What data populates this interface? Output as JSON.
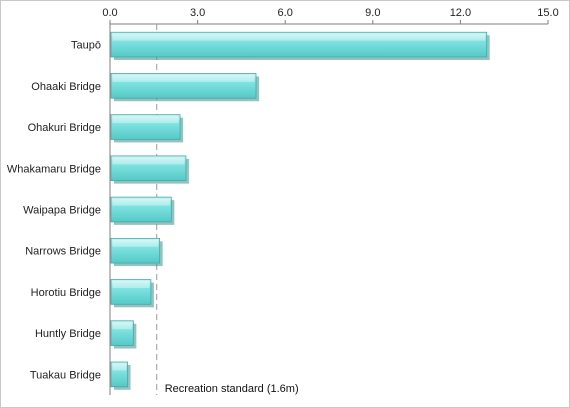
{
  "chart_data": {
    "type": "bar",
    "orientation": "horizontal",
    "categories": [
      "Taupō",
      "Ohaaki Bridge",
      "Ohakuri Bridge",
      "Whakamaru Bridge",
      "Waipapa Bridge",
      "Narrows Bridge",
      "Horotiu Bridge",
      "Huntly Bridge",
      "Tuakau Bridge"
    ],
    "values": [
      12.9,
      5.0,
      2.4,
      2.6,
      2.1,
      1.7,
      1.4,
      0.8,
      0.6
    ],
    "xlim": [
      0,
      15
    ],
    "xticks": [
      "0.0",
      "3.0",
      "6.0",
      "9.0",
      "12.0",
      "15.0"
    ],
    "xtick_values": [
      0,
      3,
      6,
      9,
      12,
      15
    ],
    "x_axis_position": "top",
    "reference_line": {
      "value": 1.6,
      "label": "Recreation standard (1.6m)"
    },
    "bar_color": "#74dedd",
    "grid": false,
    "title": "",
    "xlabel": "",
    "ylabel": ""
  }
}
